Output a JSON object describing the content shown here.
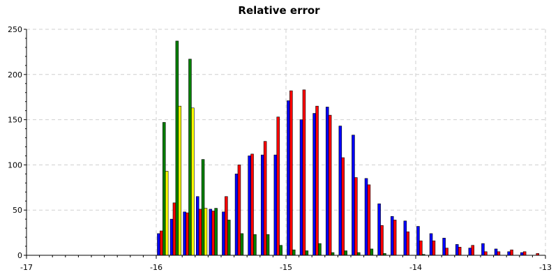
{
  "chart_data": {
    "type": "bar",
    "title": "Relative error",
    "xlabel": "",
    "ylabel": "",
    "xlim": [
      -17,
      -13
    ],
    "ylim": [
      0,
      250
    ],
    "x_ticks": [
      -17,
      -16,
      -15,
      -14,
      -13
    ],
    "x_tick_labels": [
      "-17",
      "-16",
      "-15",
      "-14",
      "-13"
    ],
    "y_ticks": [
      0,
      50,
      100,
      150,
      200,
      250
    ],
    "y_tick_labels": [
      "0",
      "50",
      "100",
      "150",
      "200",
      "250"
    ],
    "grid": true,
    "legend": "none",
    "bin_width": 0.1,
    "bin_centers": [
      -15.95,
      -15.85,
      -15.75,
      -15.65,
      -15.55,
      -15.45,
      -15.35,
      -15.25,
      -15.15,
      -15.05,
      -14.95,
      -14.85,
      -14.75,
      -14.65,
      -14.55,
      -14.45,
      -14.35,
      -14.25,
      -14.15,
      -14.05,
      -13.95,
      -13.85,
      -13.75,
      -13.65,
      -13.55,
      -13.45,
      -13.35,
      -13.25,
      -13.15,
      -13.05
    ],
    "series": [
      {
        "color": "#0000ff",
        "values": [
          24,
          40,
          48,
          65,
          51,
          48,
          90,
          110,
          111,
          111,
          171,
          150,
          157,
          164,
          143,
          133,
          85,
          57,
          43,
          38,
          32,
          24,
          19,
          12,
          8,
          13,
          7,
          4,
          3,
          0
        ]
      },
      {
        "color": "#ff0000",
        "values": [
          27,
          58,
          47,
          51,
          49,
          65,
          100,
          112,
          126,
          153,
          182,
          183,
          165,
          155,
          108,
          86,
          78,
          33,
          39,
          26,
          16,
          16,
          8,
          9,
          11,
          4,
          4,
          6,
          4,
          2
        ]
      },
      {
        "color": "#008000",
        "values": [
          147,
          237,
          217,
          106,
          52,
          39,
          24,
          23,
          23,
          11,
          6,
          5,
          13,
          3,
          5,
          3,
          7,
          2,
          0,
          0,
          1,
          0,
          0,
          0,
          0,
          0,
          0,
          0,
          0,
          0
        ]
      },
      {
        "color": "#ffff00",
        "values": [
          93,
          165,
          163,
          52,
          0,
          0,
          0,
          0,
          0,
          0,
          0,
          0,
          0,
          0,
          0,
          0,
          0,
          0,
          0,
          0,
          0,
          0,
          0,
          0,
          0,
          0,
          0,
          0,
          0,
          0
        ]
      }
    ]
  }
}
